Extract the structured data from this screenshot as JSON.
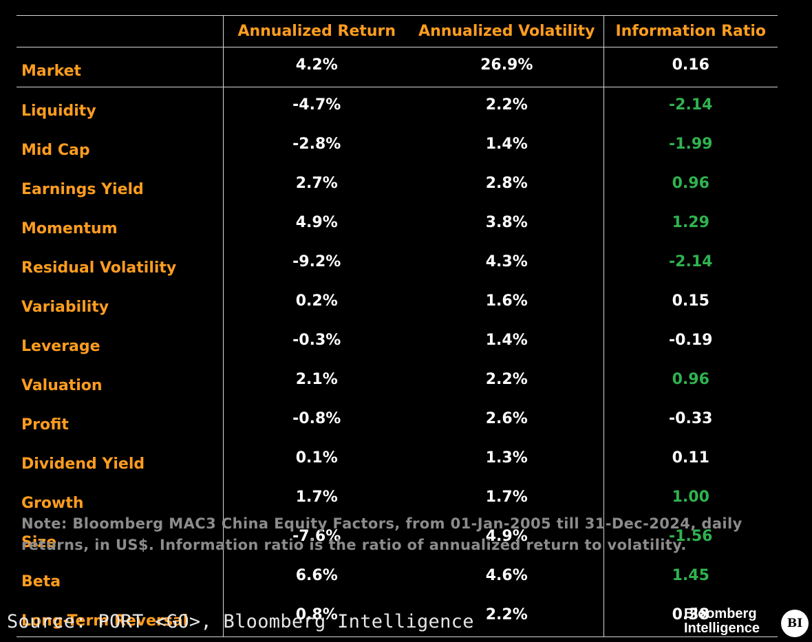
{
  "chart_data": {
    "type": "table",
    "columns": [
      "",
      "Annualized Return",
      "Annualized Volatility",
      "Information Ratio"
    ],
    "rows": [
      {
        "factor": "Market",
        "return": "4.2%",
        "volatility": "26.9%",
        "ir": "0.16",
        "ir_highlight": false
      },
      {
        "factor": "Liquidity",
        "return": "-4.7%",
        "volatility": "2.2%",
        "ir": "-2.14",
        "ir_highlight": true
      },
      {
        "factor": "Mid Cap",
        "return": "-2.8%",
        "volatility": "1.4%",
        "ir": "-1.99",
        "ir_highlight": true
      },
      {
        "factor": "Earnings Yield",
        "return": "2.7%",
        "volatility": "2.8%",
        "ir": "0.96",
        "ir_highlight": true
      },
      {
        "factor": "Momentum",
        "return": "4.9%",
        "volatility": "3.8%",
        "ir": "1.29",
        "ir_highlight": true
      },
      {
        "factor": "Residual Volatility",
        "return": "-9.2%",
        "volatility": "4.3%",
        "ir": "-2.14",
        "ir_highlight": true
      },
      {
        "factor": "Variability",
        "return": "0.2%",
        "volatility": "1.6%",
        "ir": "0.15",
        "ir_highlight": false
      },
      {
        "factor": "Leverage",
        "return": "-0.3%",
        "volatility": "1.4%",
        "ir": "-0.19",
        "ir_highlight": false
      },
      {
        "factor": "Valuation",
        "return": "2.1%",
        "volatility": "2.2%",
        "ir": "0.96",
        "ir_highlight": true
      },
      {
        "factor": "Profit",
        "return": "-0.8%",
        "volatility": "2.6%",
        "ir": "-0.33",
        "ir_highlight": false
      },
      {
        "factor": "Dividend Yield",
        "return": "0.1%",
        "volatility": "1.3%",
        "ir": "0.11",
        "ir_highlight": false
      },
      {
        "factor": "Growth",
        "return": "1.7%",
        "volatility": "1.7%",
        "ir": "1.00",
        "ir_highlight": true
      },
      {
        "factor": "Size",
        "return": "-7.6%",
        "volatility": "4.9%",
        "ir": "-1.56",
        "ir_highlight": true
      },
      {
        "factor": "Beta",
        "return": "6.6%",
        "volatility": "4.6%",
        "ir": "1.45",
        "ir_highlight": true
      },
      {
        "factor": "Long-Term Reversal",
        "return": "0.8%",
        "volatility": "2.2%",
        "ir": "0.38",
        "ir_highlight": false
      }
    ]
  },
  "note": "Note: Bloomberg MAC3 China Equity Factors, from 01-Jan-2005 till 31-Dec-2024, daily returns, in US$. Information ratio is the ratio of annualized return to volatility.",
  "source": "Source: PORT <GO>, Bloomberg Intelligence",
  "brand": {
    "wordmark_line1": "Bloomberg",
    "wordmark_line2": "Intelligence",
    "badge": "BI"
  },
  "colors": {
    "header_orange": "#ff9d1f",
    "label_orange": "#ff9d1f",
    "value_white": "#ffffff",
    "highlight_green": "#2fb34f",
    "note_gray": "#8c8c8c",
    "background": "#000000"
  }
}
